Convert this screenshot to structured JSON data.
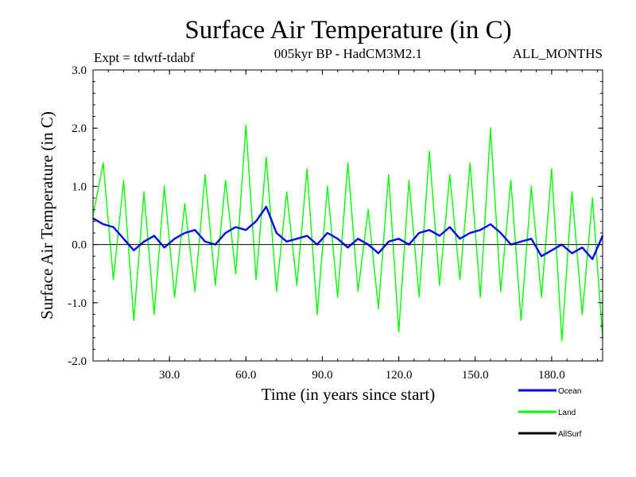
{
  "chart_data": {
    "type": "line",
    "title": "Surface Air Temperature (in C)",
    "subtitle": "005kyr BP - HadCM3M2.1",
    "experiment_label": "Expt = tdwtf-tdabf",
    "season_label": "ALL_MONTHS",
    "xlabel": "Time (in years since start)",
    "ylabel": "Surface Air Temperature (in C)",
    "xlim": [
      0,
      200
    ],
    "ylim": [
      -2.0,
      3.0
    ],
    "x_ticks": [
      {
        "value": 30,
        "label": "30.0"
      },
      {
        "value": 60,
        "label": "60.0"
      },
      {
        "value": 90,
        "label": "90.0"
      },
      {
        "value": 120,
        "label": "120.0"
      },
      {
        "value": 150,
        "label": "150.0"
      },
      {
        "value": 180,
        "label": "180.0"
      }
    ],
    "y_ticks": [
      {
        "value": -2.0,
        "label": "-2.0"
      },
      {
        "value": -1.0,
        "label": "-1.0"
      },
      {
        "value": 0.0,
        "label": "0.0"
      },
      {
        "value": 1.0,
        "label": "1.0"
      },
      {
        "value": 2.0,
        "label": "2.0"
      },
      {
        "value": 3.0,
        "label": "3.0"
      }
    ],
    "zero_line": 0.0,
    "series": [
      {
        "name": "Land",
        "color": "#00ff00",
        "x": [
          0,
          4,
          8,
          12,
          16,
          20,
          24,
          28,
          32,
          36,
          40,
          44,
          48,
          52,
          56,
          60,
          64,
          68,
          72,
          76,
          80,
          84,
          88,
          92,
          96,
          100,
          104,
          108,
          112,
          116,
          120,
          124,
          128,
          132,
          136,
          140,
          144,
          148,
          152,
          156,
          160,
          164,
          168,
          172,
          176,
          180,
          184,
          188,
          192,
          196,
          200
        ],
        "values": [
          0.5,
          1.4,
          -0.6,
          1.1,
          -1.3,
          0.9,
          -1.2,
          1.0,
          -0.9,
          0.7,
          -0.8,
          1.2,
          -0.7,
          1.1,
          -0.5,
          2.05,
          -0.6,
          1.5,
          -0.8,
          0.9,
          -0.7,
          1.3,
          -1.2,
          1.0,
          -0.9,
          1.4,
          -0.8,
          0.6,
          -1.1,
          1.2,
          -1.5,
          1.1,
          -0.9,
          1.6,
          -0.7,
          1.2,
          -0.6,
          1.4,
          -0.9,
          2.0,
          -0.8,
          1.1,
          -1.3,
          1.0,
          -0.9,
          1.3,
          -1.65,
          0.9,
          -1.2,
          0.8,
          -1.6
        ]
      },
      {
        "name": "Ocean",
        "color": "#0000ff",
        "x": [
          0,
          4,
          8,
          12,
          16,
          20,
          24,
          28,
          32,
          36,
          40,
          44,
          48,
          52,
          56,
          60,
          64,
          68,
          72,
          76,
          80,
          84,
          88,
          92,
          96,
          100,
          104,
          108,
          112,
          116,
          120,
          124,
          128,
          132,
          136,
          140,
          144,
          148,
          152,
          156,
          160,
          164,
          168,
          172,
          176,
          180,
          184,
          188,
          192,
          196,
          200
        ],
        "values": [
          0.45,
          0.35,
          0.3,
          0.1,
          -0.1,
          0.05,
          0.15,
          -0.05,
          0.1,
          0.2,
          0.25,
          0.05,
          0.0,
          0.2,
          0.3,
          0.25,
          0.4,
          0.65,
          0.2,
          0.05,
          0.1,
          0.15,
          0.0,
          0.2,
          0.1,
          -0.05,
          0.1,
          0.0,
          -0.15,
          0.05,
          0.1,
          0.0,
          0.2,
          0.25,
          0.15,
          0.3,
          0.1,
          0.2,
          0.25,
          0.35,
          0.2,
          0.0,
          0.05,
          0.1,
          -0.2,
          -0.1,
          0.0,
          -0.15,
          -0.05,
          -0.25,
          0.15
        ]
      },
      {
        "name": "AllSurf",
        "color": "#000000",
        "x": [],
        "values": []
      }
    ],
    "legend": {
      "position": "bottom-right",
      "entries": [
        {
          "label": "Ocean",
          "color": "#0000ff"
        },
        {
          "label": "Land",
          "color": "#00ff00"
        },
        {
          "label": "AllSurf",
          "color": "#000000"
        }
      ]
    },
    "grid": false
  }
}
